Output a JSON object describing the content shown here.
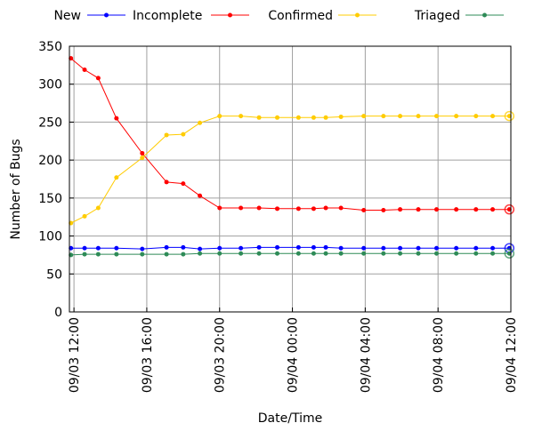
{
  "chart_data": {
    "type": "line",
    "xlabel": "Date/Time",
    "ylabel": "Number of Bugs",
    "ylim": [
      0,
      350
    ],
    "xlim": [
      "09/03 11:45",
      "09/04 12:00"
    ],
    "grid": true,
    "legend_position": "top",
    "y_ticks": [
      0,
      50,
      100,
      150,
      200,
      250,
      300,
      350
    ],
    "x_ticks": [
      "09/03 12:00",
      "09/03 16:00",
      "09/03 20:00",
      "09/04 00:00",
      "09/04 04:00",
      "09/04 08:00",
      "09/04 12:00"
    ],
    "x": [
      "09/03 11:50",
      "09/03 12:35",
      "09/03 13:20",
      "09/03 14:20",
      "09/03 15:45",
      "09/03 17:05",
      "09/03 18:00",
      "09/03 18:55",
      "09/03 20:00",
      "09/03 21:10",
      "09/03 22:10",
      "09/03 23:10",
      "09/04 00:20",
      "09/04 01:10",
      "09/04 01:50",
      "09/04 02:40",
      "09/04 03:55",
      "09/04 05:00",
      "09/04 05:55",
      "09/04 06:55",
      "09/04 07:55",
      "09/04 09:00",
      "09/04 10:05",
      "09/04 11:00",
      "09/04 11:55"
    ],
    "series": [
      {
        "name": "New",
        "color": "#0000ff",
        "values": [
          84,
          84,
          84,
          84,
          83,
          85,
          85,
          83,
          84,
          84,
          85,
          85,
          85,
          85,
          85,
          84,
          84,
          84,
          84,
          84,
          84,
          84,
          84,
          84,
          84
        ]
      },
      {
        "name": "Incomplete",
        "color": "#ff0000",
        "values": [
          334,
          319,
          308,
          255,
          209,
          171,
          169,
          153,
          137,
          137,
          137,
          136,
          136,
          136,
          137,
          137,
          134,
          134,
          135,
          135,
          135,
          135,
          135,
          135,
          135
        ]
      },
      {
        "name": "Confirmed",
        "color": "#ffcc00",
        "values": [
          117,
          126,
          137,
          177,
          203,
          233,
          234,
          249,
          258,
          258,
          256,
          256,
          256,
          256,
          256,
          257,
          258,
          258,
          258,
          258,
          258,
          258,
          258,
          258,
          258
        ]
      },
      {
        "name": "Triaged",
        "color": "#2e8b57",
        "values": [
          75,
          76,
          76,
          76,
          76,
          76,
          76,
          77,
          77,
          77,
          77,
          77,
          77,
          77,
          77,
          77,
          77,
          77,
          77,
          77,
          77,
          77,
          77,
          77,
          77
        ]
      }
    ]
  }
}
